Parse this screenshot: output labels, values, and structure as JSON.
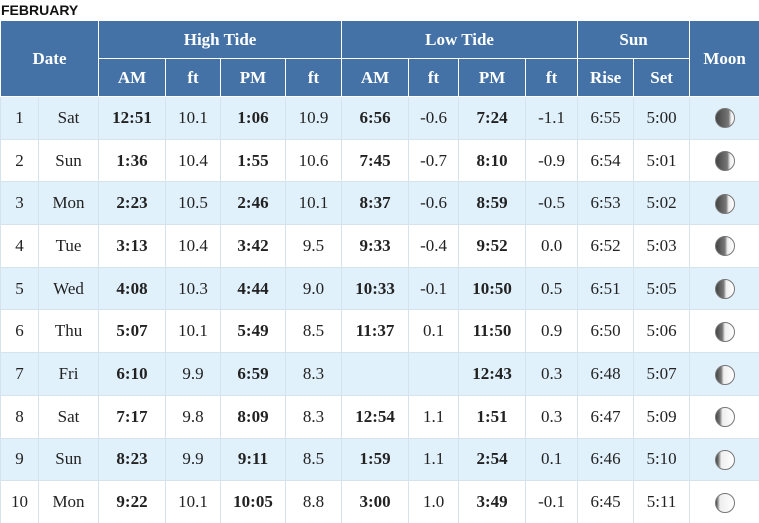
{
  "title": "FEBRUARY",
  "table": {
    "header": {
      "date": "Date",
      "high_tide": "High Tide",
      "low_tide": "Low Tide",
      "sun": "Sun",
      "moon": "Moon",
      "columns": [
        "AM",
        "ft",
        "PM",
        "ft",
        "AM",
        "ft",
        "PM",
        "ft",
        "Rise",
        "Set"
      ]
    },
    "rows": [
      [
        "1",
        "Sat",
        "12:51",
        "10.1",
        "1:06",
        "10.9",
        "6:56",
        "-0.6",
        "7:24",
        "-1.1",
        "6:55",
        "5:00"
      ],
      [
        "2",
        "Sun",
        "1:36",
        "10.4",
        "1:55",
        "10.6",
        "7:45",
        "-0.7",
        "8:10",
        "-0.9",
        "6:54",
        "5:01"
      ],
      [
        "3",
        "Mon",
        "2:23",
        "10.5",
        "2:46",
        "10.1",
        "8:37",
        "-0.6",
        "8:59",
        "-0.5",
        "6:53",
        "5:02"
      ],
      [
        "4",
        "Tue",
        "3:13",
        "10.4",
        "3:42",
        "9.5",
        "9:33",
        "-0.4",
        "9:52",
        "0.0",
        "6:52",
        "5:03"
      ],
      [
        "5",
        "Wed",
        "4:08",
        "10.3",
        "4:44",
        "9.0",
        "10:33",
        "-0.1",
        "10:50",
        "0.5",
        "6:51",
        "5:05"
      ],
      [
        "6",
        "Thu",
        "5:07",
        "10.1",
        "5:49",
        "8.5",
        "11:37",
        "0.1",
        "11:50",
        "0.9",
        "6:50",
        "5:06"
      ],
      [
        "7",
        "Fri",
        "6:10",
        "9.9",
        "6:59",
        "8.3",
        null,
        null,
        "12:43",
        "0.3",
        "6:48",
        "5:07"
      ],
      [
        "8",
        "Sat",
        "7:17",
        "9.8",
        "8:09",
        "8.3",
        "12:54",
        "1.1",
        "1:51",
        "0.3",
        "6:47",
        "5:09"
      ],
      [
        "9",
        "Sun",
        "8:23",
        "9.9",
        "9:11",
        "8.5",
        "1:59",
        "1.1",
        "2:54",
        "0.1",
        "6:46",
        "5:10"
      ],
      [
        "10",
        "Mon",
        "9:22",
        "10.1",
        "10:05",
        "8.8",
        "3:00",
        "1.0",
        "3:49",
        "-0.1",
        "6:45",
        "5:11"
      ]
    ]
  }
}
